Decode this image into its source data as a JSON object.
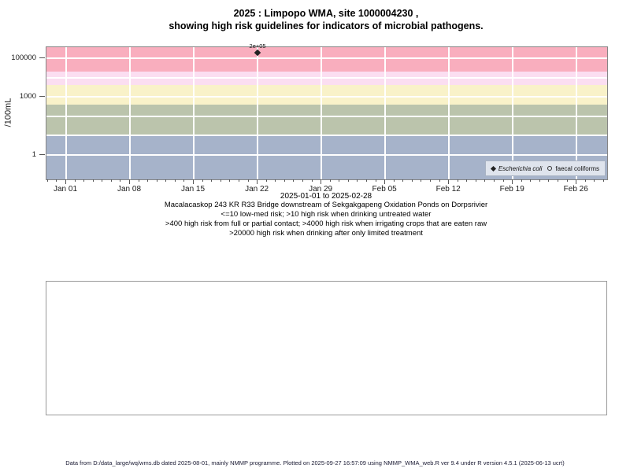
{
  "title": {
    "line1": "2025 : Limpopo WMA, site 1000004230 ,",
    "line2": "showing high risk guidelines for indicators of microbial pathogens."
  },
  "captions": [
    "Macalacaskop 243 KR R33 Bridge downstream of Sekgakgapeng Oxidation Ponds on Dorpsrivier",
    "<=10 low-med risk; >10 high risk when drinking untreated water",
    ">400 high risk from full or partial contact; >4000 high risk when irrigating crops that are eaten raw",
    ">20000 high risk when drinking after only limited treatment"
  ],
  "footer": {
    "text": "Data from D:/data_large/wq/wms.db dated 2025-08-01, mainly NMMP programme. Plotted on 2025-09-27 16:57:09 using NMMP_WMA_web.R ver 9.4 under R version 4.5.1 (2025-06-13 ucrt)"
  },
  "legend": {
    "items": [
      {
        "symbol": "filled-diamond",
        "label": "Escherichia coli",
        "italic": true
      },
      {
        "symbol": "open-circle",
        "label": "faecal coliforms",
        "italic": false
      }
    ]
  },
  "chart_data": {
    "type": "scatter",
    "title": "2025 : Limpopo WMA, site 1000004230 , showing high risk guidelines for indicators of microbial pathogens.",
    "ylabel": "/100mL",
    "xlabel": "2025-01-01 to 2025-02-28",
    "y_scale": "log10",
    "y_domain_log10": [
      -1.26,
      5.57
    ],
    "y_ticks": [
      {
        "label": "100000",
        "value": 100000
      },
      {
        "label": "1000",
        "value": 1000
      },
      {
        "label": "1",
        "value": 1
      }
    ],
    "y_gridline_values": [
      1,
      10,
      100,
      1000,
      10000,
      100000
    ],
    "x_domain_days": [
      -2.16,
      59.35
    ],
    "x_ticks": [
      {
        "label": "Jan 01",
        "day": 0
      },
      {
        "label": "Jan 08",
        "day": 7
      },
      {
        "label": "Jan 15",
        "day": 14
      },
      {
        "label": "Jan 22",
        "day": 21
      },
      {
        "label": "Jan 29",
        "day": 28
      },
      {
        "label": "Feb 05",
        "day": 35
      },
      {
        "label": "Feb 12",
        "day": 42
      },
      {
        "label": "Feb 19",
        "day": 49
      },
      {
        "label": "Feb 26",
        "day": 56
      }
    ],
    "x_minor_tick_step_days": 1,
    "grid": true,
    "legend_position": "bottom-right-inside",
    "risk_bands": [
      {
        "from": null,
        "to": 10,
        "color": "#a6b3ca"
      },
      {
        "from": 10,
        "to": 400,
        "color": "#bbc4ac"
      },
      {
        "from": 400,
        "to": 4000,
        "color": "#f9f2c9"
      },
      {
        "from": 4000,
        "to": 20000,
        "color": "#fbdef1"
      },
      {
        "from": 20000,
        "to": null,
        "color": "#f9aebe"
      }
    ],
    "risk_thresholds": {
      "low_med_max": 10,
      "full_or_partial_contact": 400,
      "irrigating_crops_eaten_raw": 4000,
      "drinking_after_limited_treatment": 20000
    },
    "series": [
      {
        "name": "Escherichia coli",
        "marker": "filled-diamond",
        "points": [
          {
            "date": "2025-01-22",
            "day": 21,
            "value": 200000,
            "label": "2e+05"
          }
        ]
      },
      {
        "name": "faecal coliforms",
        "marker": "open-circle",
        "points": []
      }
    ]
  }
}
